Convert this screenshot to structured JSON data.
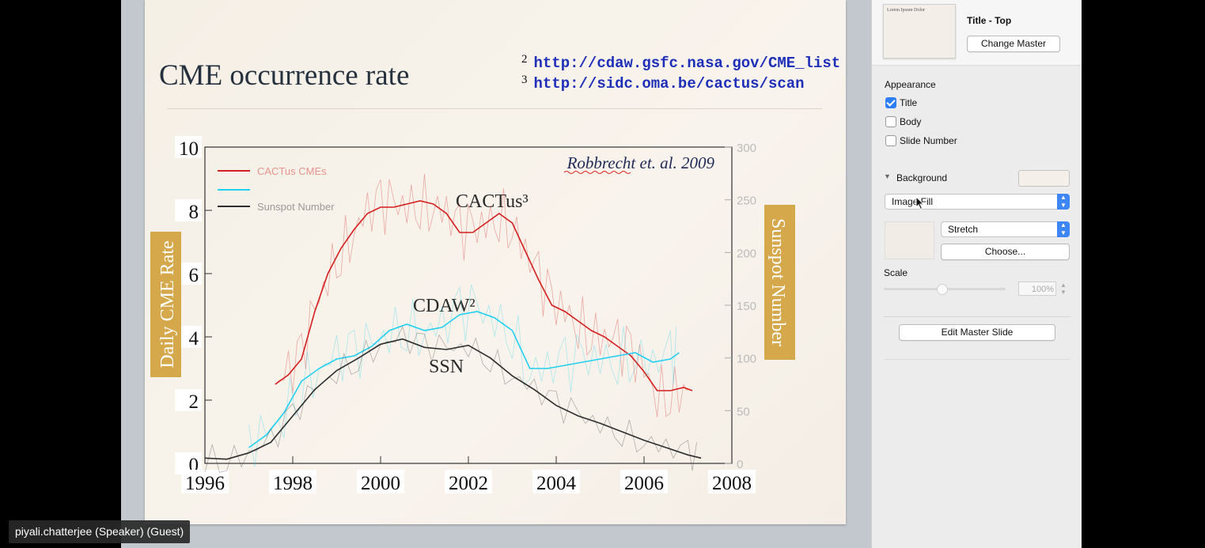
{
  "slide": {
    "title": "CME occurrence rate",
    "refs": [
      {
        "num": "2",
        "url": "http://cdaw.gsfc.nasa.gov/CME_list"
      },
      {
        "num": "3",
        "url": "http://sidc.oma.be/cactus/scan"
      }
    ]
  },
  "chart_data": {
    "type": "line",
    "title": "",
    "xlabel": "",
    "ylabel": "Daily CME Rate",
    "ylabel2": "Sunspot Number",
    "xlim": [
      1996,
      2008
    ],
    "ylim": [
      0,
      10
    ],
    "ylim2": [
      0,
      300
    ],
    "x_ticks": [
      "1996",
      "1998",
      "2000",
      "2002",
      "2004",
      "2006",
      "2008"
    ],
    "y_ticks": [
      "0",
      "2",
      "4",
      "6",
      "8",
      "10"
    ],
    "y2_ticks": [
      "0",
      "50",
      "100",
      "150",
      "200",
      "250",
      "300"
    ],
    "citation": "Robbrecht et. al. 2009",
    "legend": [
      "CACTus CMEs",
      "",
      "Sunspot Number"
    ],
    "annotations": [
      "CACTus³",
      "CDAW²",
      "SSN"
    ],
    "series": [
      {
        "name": "CACTus CMEs",
        "color": "#d42020",
        "axis": "left",
        "x": [
          1997.6,
          1997.9,
          1998.2,
          1998.5,
          1998.8,
          1999.1,
          1999.4,
          1999.7,
          2000.0,
          2000.3,
          2000.6,
          2000.9,
          2001.2,
          2001.5,
          2001.8,
          2002.1,
          2002.4,
          2002.7,
          2003.0,
          2003.3,
          2003.6,
          2003.9,
          2004.2,
          2004.5,
          2004.8,
          2005.1,
          2005.4,
          2005.7,
          2006.0,
          2006.3,
          2006.6,
          2006.9,
          2007.1
        ],
        "y": [
          2.5,
          2.8,
          3.3,
          4.8,
          6.0,
          6.8,
          7.4,
          7.9,
          8.1,
          8.1,
          8.2,
          8.3,
          8.2,
          7.9,
          7.3,
          7.3,
          7.6,
          7.9,
          7.6,
          6.7,
          5.8,
          5.0,
          4.8,
          4.5,
          4.2,
          4.0,
          3.7,
          3.4,
          2.9,
          2.3,
          2.3,
          2.4,
          2.3
        ]
      },
      {
        "name": "CDAW",
        "color": "#23d0f0",
        "axis": "left",
        "x": [
          1997.0,
          1997.4,
          1997.8,
          1998.2,
          1998.6,
          1999.0,
          1999.4,
          1999.8,
          2000.2,
          2000.6,
          2001.0,
          2001.4,
          2001.8,
          2002.2,
          2002.6,
          2003.0,
          2003.4,
          2003.8,
          2004.2,
          2004.6,
          2005.0,
          2005.4,
          2005.8,
          2006.2,
          2006.6,
          2006.8
        ],
        "y": [
          0.5,
          0.9,
          1.6,
          2.6,
          3.0,
          3.3,
          3.4,
          3.7,
          4.2,
          4.4,
          4.2,
          4.3,
          4.7,
          4.8,
          4.6,
          4.2,
          3.0,
          3.0,
          3.1,
          3.2,
          3.3,
          3.4,
          3.5,
          3.2,
          3.3,
          3.5
        ]
      },
      {
        "name": "Sunspot Number",
        "color": "#2e2e2e",
        "axis": "right",
        "x": [
          1996.0,
          1996.5,
          1997.0,
          1997.5,
          1998.0,
          1998.5,
          1999.0,
          1999.5,
          2000.0,
          2000.5,
          2001.0,
          2001.5,
          2002.0,
          2002.5,
          2003.0,
          2003.5,
          2004.0,
          2004.5,
          2005.0,
          2005.5,
          2006.0,
          2006.5,
          2007.0,
          2007.3
        ],
        "y": [
          5,
          4,
          10,
          20,
          45,
          70,
          88,
          100,
          113,
          118,
          110,
          108,
          112,
          100,
          83,
          70,
          55,
          45,
          38,
          30,
          22,
          15,
          8,
          5
        ]
      }
    ]
  },
  "inspector": {
    "master_name": "Title - Top",
    "thumb_text": "Lorem Ipsum Dolor",
    "change_master": "Change Master",
    "appearance_header": "Appearance",
    "checkboxes": [
      {
        "label": "Title",
        "checked": true
      },
      {
        "label": "Body",
        "checked": false
      },
      {
        "label": "Slide Number",
        "checked": false
      }
    ],
    "background_header": "Background",
    "fill_type": "Image Fill",
    "fill_mode": "Stretch",
    "choose": "Choose...",
    "scale_label": "Scale",
    "scale_value": "100%",
    "edit_master": "Edit Master Slide"
  },
  "participant": "piyali.chatterjee (Speaker) (Guest)"
}
